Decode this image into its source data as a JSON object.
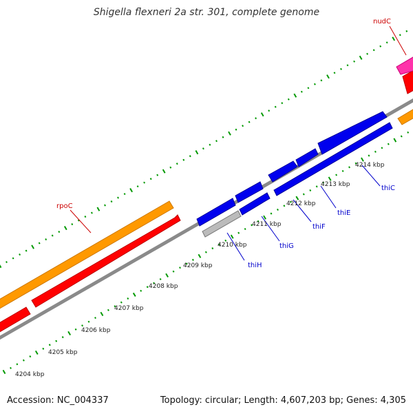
{
  "title": "Shigella flexneri 2a str. 301, complete genome",
  "footer": {
    "accession": "Accession: NC_004337",
    "summary": "Topology: circular; Length: 4,607,203 bp; Genes: 4,305"
  },
  "ticks": [
    {
      "label": "4204 kbp"
    },
    {
      "label": "4205 kbp"
    },
    {
      "label": "4206 kbp"
    },
    {
      "label": "4207 kbp"
    },
    {
      "label": "4208 kbp"
    },
    {
      "label": "4209 kbp"
    },
    {
      "label": "4210 kbp"
    },
    {
      "label": "4211 kbp"
    },
    {
      "label": "4212 kbp"
    },
    {
      "label": "4213 kbp"
    },
    {
      "label": "4214 kbp"
    }
  ],
  "genes": [
    {
      "name": "rpoC",
      "color": "#cc0000"
    },
    {
      "name": "nudC",
      "color": "#cc0000"
    },
    {
      "name": "thiH",
      "color": "#0000cc"
    },
    {
      "name": "thiG",
      "color": "#0000cc"
    },
    {
      "name": "thiF",
      "color": "#0000cc"
    },
    {
      "name": "thiE",
      "color": "#0000cc"
    },
    {
      "name": "thiC",
      "color": "#0000cc"
    }
  ],
  "colors": {
    "backbone": "#888888",
    "orange": "#ff9900",
    "red": "#ff0000",
    "blue": "#0000ee",
    "pink": "#ff33aa",
    "gray_feature": "#bbbbbb",
    "tick_green": "#009900"
  }
}
